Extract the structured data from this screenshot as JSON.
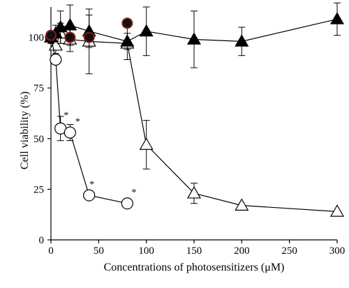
{
  "chart_data": {
    "type": "line",
    "title": "",
    "xlabel": "Concentrations of photosensitizers (μM)",
    "ylabel": "Cell viability (%)",
    "xlim": [
      0,
      300
    ],
    "ylim": [
      0,
      115
    ],
    "xticks": [
      0,
      50,
      100,
      150,
      200,
      250,
      300
    ],
    "yticks": [
      0,
      25,
      50,
      75,
      100
    ],
    "grid": false,
    "legend": "none",
    "series": [
      {
        "marker": "filled-triangle",
        "color": "#000000",
        "points": [
          {
            "x": 0,
            "y": 100,
            "err": 3
          },
          {
            "x": 5,
            "y": 102,
            "err": 4
          },
          {
            "x": 10,
            "y": 105,
            "err": 8
          },
          {
            "x": 20,
            "y": 106,
            "err": 10
          },
          {
            "x": 40,
            "y": 103,
            "err": 8
          },
          {
            "x": 80,
            "y": 98,
            "err": 4
          },
          {
            "x": 100,
            "y": 103,
            "err": 12
          },
          {
            "x": 150,
            "y": 99,
            "err": 14
          },
          {
            "x": 200,
            "y": 98,
            "err": 7
          },
          {
            "x": 300,
            "y": 109,
            "err": 8
          }
        ]
      },
      {
        "marker": "open-triangle",
        "color": "#000000",
        "points": [
          {
            "x": 0,
            "y": 100,
            "err": 3
          },
          {
            "x": 5,
            "y": 96,
            "err": 4
          },
          {
            "x": 10,
            "y": 102,
            "err": 5
          },
          {
            "x": 20,
            "y": 99,
            "err": 6
          },
          {
            "x": 40,
            "y": 98,
            "err": 16
          },
          {
            "x": 80,
            "y": 97,
            "err": 8
          },
          {
            "x": 100,
            "y": 47,
            "err": 12
          },
          {
            "x": 150,
            "y": 23,
            "err": 5
          },
          {
            "x": 200,
            "y": 17,
            "err": 0
          },
          {
            "x": 300,
            "y": 14,
            "err": 0
          }
        ]
      },
      {
        "marker": "open-circle",
        "color": "#000000",
        "points": [
          {
            "x": 0,
            "y": 100,
            "err": 0
          },
          {
            "x": 5,
            "y": 89,
            "err": 0
          },
          {
            "x": 10,
            "y": 55,
            "err": 6
          },
          {
            "x": 20,
            "y": 53,
            "err": 4
          },
          {
            "x": 40,
            "y": 22,
            "err": 0
          },
          {
            "x": 80,
            "y": 18,
            "err": 0
          }
        ]
      },
      {
        "marker": "filled-circle-redrim",
        "color": "#8a1a1a",
        "points": [
          {
            "x": 0,
            "y": 101,
            "err": 0
          },
          {
            "x": 20,
            "y": 100,
            "err": 0
          },
          {
            "x": 40,
            "y": 100,
            "err": 0
          },
          {
            "x": 80,
            "y": 107,
            "err": 0
          }
        ]
      }
    ],
    "annotations": [
      {
        "text": "*",
        "x": 16,
        "y": 60
      },
      {
        "text": "*",
        "x": 28,
        "y": 57
      },
      {
        "text": "*",
        "x": 43,
        "y": 26
      },
      {
        "text": "*",
        "x": 87,
        "y": 22
      }
    ]
  }
}
